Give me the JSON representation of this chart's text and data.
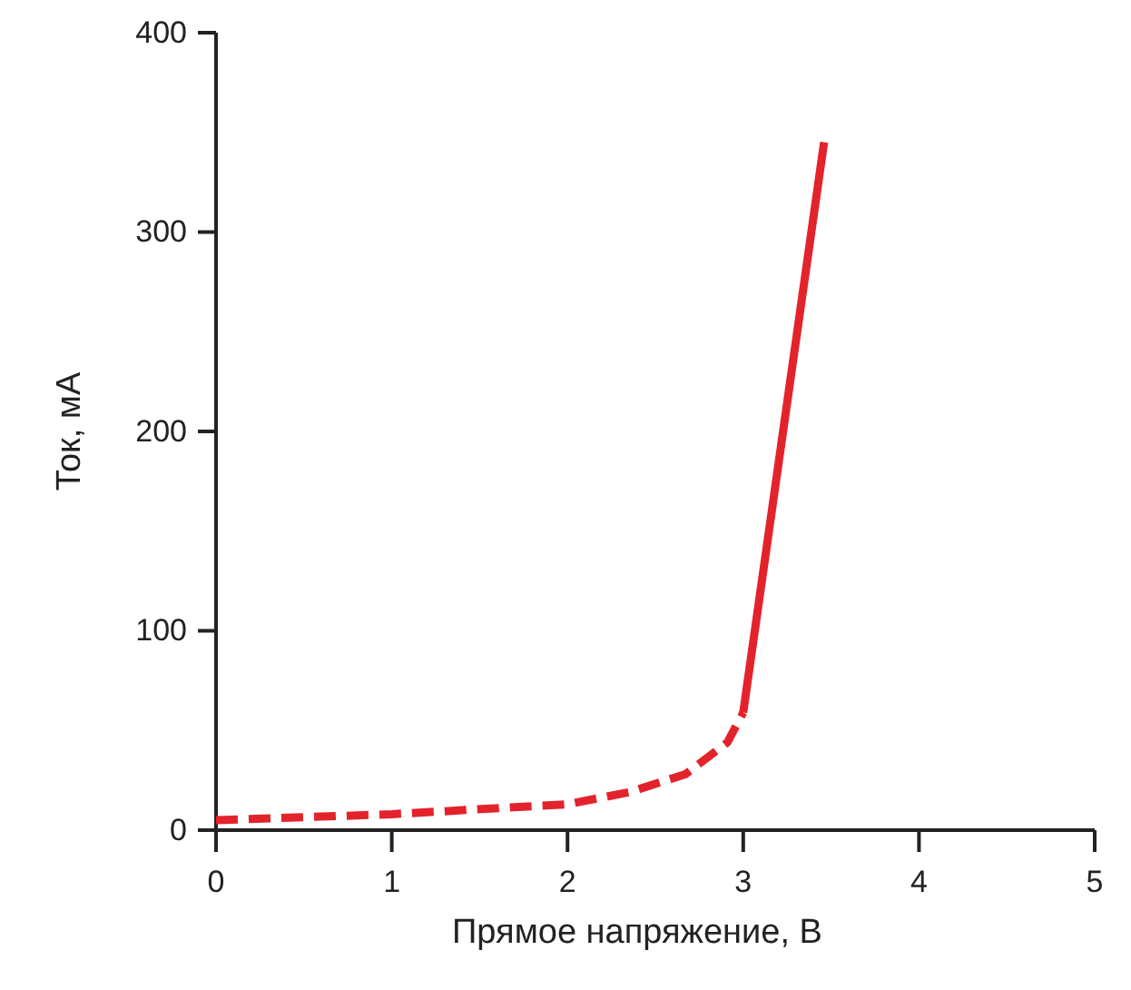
{
  "chart_data": {
    "type": "line",
    "xlabel": "Прямое напряжение, В",
    "ylabel": "Ток, мА",
    "xlim": [
      0,
      5
    ],
    "ylim": [
      0,
      400
    ],
    "xticks": [
      0,
      1,
      2,
      3,
      4,
      5
    ],
    "yticks": [
      0,
      100,
      200,
      300,
      400
    ],
    "grid": false,
    "series": [
      {
        "color": "#e3232b",
        "line_style": "dashed",
        "x": [
          0,
          1,
          2,
          2.35,
          2.67,
          2.91,
          3.0
        ],
        "values": [
          5,
          8,
          13,
          19,
          28,
          44,
          59
        ]
      },
      {
        "color": "#e3232b",
        "line_style": "solid",
        "x": [
          3.0,
          3.46
        ],
        "values": [
          59,
          345
        ]
      }
    ]
  }
}
